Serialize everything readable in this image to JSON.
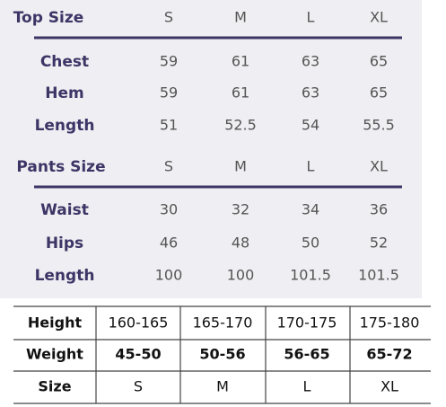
{
  "top_table": {
    "title": "Top Size",
    "columns": [
      "S",
      "M",
      "L",
      "XL"
    ],
    "rows": [
      {
        "label": "Chest",
        "values": [
          59,
          61,
          63,
          65
        ]
      },
      {
        "label": "Hem",
        "values": [
          59,
          61,
          63,
          65
        ]
      },
      {
        "label": "Length",
        "values": [
          51,
          52.5,
          54,
          55.5
        ]
      }
    ]
  },
  "pants_table": {
    "title": "Pants Size",
    "columns": [
      "S",
      "M",
      "L",
      "XL"
    ],
    "rows": [
      {
        "label": "Waist",
        "values": [
          30,
          32,
          34,
          36
        ]
      },
      {
        "label": "Hips",
        "values": [
          46,
          48,
          50,
          52
        ]
      },
      {
        "label": "Length",
        "values": [
          100,
          100,
          101.5,
          101.5
        ]
      }
    ]
  },
  "fit_table": {
    "rows": [
      [
        "Height",
        "160-165",
        "165-170",
        "170-175",
        "175-180"
      ],
      [
        "Weight",
        "45-50",
        "50-56",
        "56-65",
        "65-72"
      ],
      [
        "Size",
        "S",
        "M",
        "L",
        "XL"
      ]
    ]
  }
}
